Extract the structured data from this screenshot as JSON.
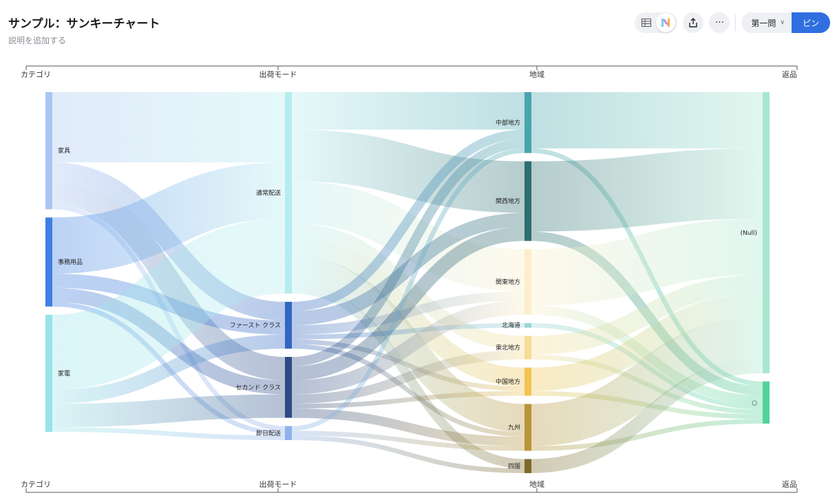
{
  "header": {
    "title": "サンプル：サンキーチャート",
    "subtitle": "説明を追加する"
  },
  "toolbar": {
    "icons": [
      "table-icon",
      "chart-icon",
      "share-icon",
      "more-icon"
    ],
    "more_label": "···",
    "dropdown_label": "第一問",
    "pin_label": "ピン"
  },
  "chart_data": {
    "type": "sankey",
    "dimensions": [
      "カテゴリ",
      "出荷モード",
      "地域",
      "返品"
    ],
    "nodes": [
      {
        "id": "家具",
        "column": 0,
        "value": 25,
        "color": "#a9c6f2"
      },
      {
        "id": "事務用品",
        "column": 0,
        "value": 19,
        "color": "#3f7fe3"
      },
      {
        "id": "家電",
        "column": 0,
        "value": 25,
        "color": "#97e3e9"
      },
      {
        "id": "通常配送",
        "column": 1,
        "value": 43,
        "color": "#b5ecef"
      },
      {
        "id": "ファースト クラス",
        "column": 1,
        "value": 10,
        "color": "#3366c2"
      },
      {
        "id": "セカンド クラス",
        "column": 1,
        "value": 13,
        "color": "#2c4a86"
      },
      {
        "id": "即日配送",
        "column": 1,
        "value": 3,
        "color": "#8fb2ea"
      },
      {
        "id": "中部地方",
        "column": 2,
        "value": 13,
        "color": "#48a4ad"
      },
      {
        "id": "関西地方",
        "column": 2,
        "value": 17,
        "color": "#2d6d70"
      },
      {
        "id": "関東地方",
        "column": 2,
        "value": 14,
        "color": "#fbeec8"
      },
      {
        "id": "北海道",
        "column": 2,
        "value": 1,
        "color": "#9ad6d6"
      },
      {
        "id": "東北地方",
        "column": 2,
        "value": 5,
        "color": "#f6dd93"
      },
      {
        "id": "中国地方",
        "column": 2,
        "value": 6,
        "color": "#f1c453"
      },
      {
        "id": "九州",
        "column": 2,
        "value": 10,
        "color": "#b9953a"
      },
      {
        "id": "四国",
        "column": 2,
        "value": 3,
        "color": "#7d6a2b"
      },
      {
        "id": "(Null)",
        "column": 3,
        "value": 60,
        "color": "#a7e7cf"
      },
      {
        "id": "○",
        "column": 3,
        "value": 9,
        "color": "#52d29c"
      }
    ],
    "links": [
      {
        "source": "家具",
        "target": "通常配送",
        "value": 15
      },
      {
        "source": "家具",
        "target": "ファースト クラス",
        "value": 4
      },
      {
        "source": "家具",
        "target": "セカンド クラス",
        "value": 5
      },
      {
        "source": "家具",
        "target": "即日配送",
        "value": 1
      },
      {
        "source": "事務用品",
        "target": "通常配送",
        "value": 12
      },
      {
        "source": "事務用品",
        "target": "ファースト クラス",
        "value": 3
      },
      {
        "source": "事務用品",
        "target": "セカンド クラス",
        "value": 3
      },
      {
        "source": "事務用品",
        "target": "即日配送",
        "value": 1
      },
      {
        "source": "家電",
        "target": "通常配送",
        "value": 16
      },
      {
        "source": "家電",
        "target": "ファースト クラス",
        "value": 3
      },
      {
        "source": "家電",
        "target": "セカンド クラス",
        "value": 5
      },
      {
        "source": "家電",
        "target": "即日配送",
        "value": 1
      },
      {
        "source": "通常配送",
        "target": "中部地方",
        "value": 8
      },
      {
        "source": "通常配送",
        "target": "関西地方",
        "value": 11
      },
      {
        "source": "通常配送",
        "target": "関東地方",
        "value": 9
      },
      {
        "source": "通常配送",
        "target": "東北地方",
        "value": 3
      },
      {
        "source": "通常配送",
        "target": "中国地方",
        "value": 4
      },
      {
        "source": "通常配送",
        "target": "九州",
        "value": 6
      },
      {
        "source": "通常配送",
        "target": "四国",
        "value": 2
      },
      {
        "source": "ファースト クラス",
        "target": "中部地方",
        "value": 2
      },
      {
        "source": "ファースト クラス",
        "target": "関西地方",
        "value": 3
      },
      {
        "source": "ファースト クラス",
        "target": "関東地方",
        "value": 2
      },
      {
        "source": "ファースト クラス",
        "target": "北海道",
        "value": 1
      },
      {
        "source": "ファースト クラス",
        "target": "中国地方",
        "value": 1
      },
      {
        "source": "ファースト クラス",
        "target": "九州",
        "value": 1
      },
      {
        "source": "セカンド クラス",
        "target": "中部地方",
        "value": 2
      },
      {
        "source": "セカンド クラス",
        "target": "関西地方",
        "value": 3
      },
      {
        "source": "セカンド クラス",
        "target": "関東地方",
        "value": 3
      },
      {
        "source": "セカンド クラス",
        "target": "東北地方",
        "value": 2
      },
      {
        "source": "セカンド クラス",
        "target": "中国地方",
        "value": 1
      },
      {
        "source": "セカンド クラス",
        "target": "九州",
        "value": 2
      },
      {
        "source": "即日配送",
        "target": "中部地方",
        "value": 1
      },
      {
        "source": "即日配送",
        "target": "九州",
        "value": 1
      },
      {
        "source": "即日配送",
        "target": "四国",
        "value": 1
      },
      {
        "source": "中部地方",
        "target": "(Null)",
        "value": 12
      },
      {
        "source": "中部地方",
        "target": "○",
        "value": 1
      },
      {
        "source": "関西地方",
        "target": "(Null)",
        "value": 15
      },
      {
        "source": "関西地方",
        "target": "○",
        "value": 2
      },
      {
        "source": "関東地方",
        "target": "(Null)",
        "value": 12
      },
      {
        "source": "関東地方",
        "target": "○",
        "value": 2
      },
      {
        "source": "北海道",
        "target": "○",
        "value": 1
      },
      {
        "source": "東北地方",
        "target": "(Null)",
        "value": 4
      },
      {
        "source": "東北地方",
        "target": "○",
        "value": 1
      },
      {
        "source": "中国地方",
        "target": "(Null)",
        "value": 5
      },
      {
        "source": "中国地方",
        "target": "○",
        "value": 1
      },
      {
        "source": "九州",
        "target": "(Null)",
        "value": 9
      },
      {
        "source": "九州",
        "target": "○",
        "value": 1
      },
      {
        "source": "四国",
        "target": "(Null)",
        "value": 3
      }
    ]
  }
}
